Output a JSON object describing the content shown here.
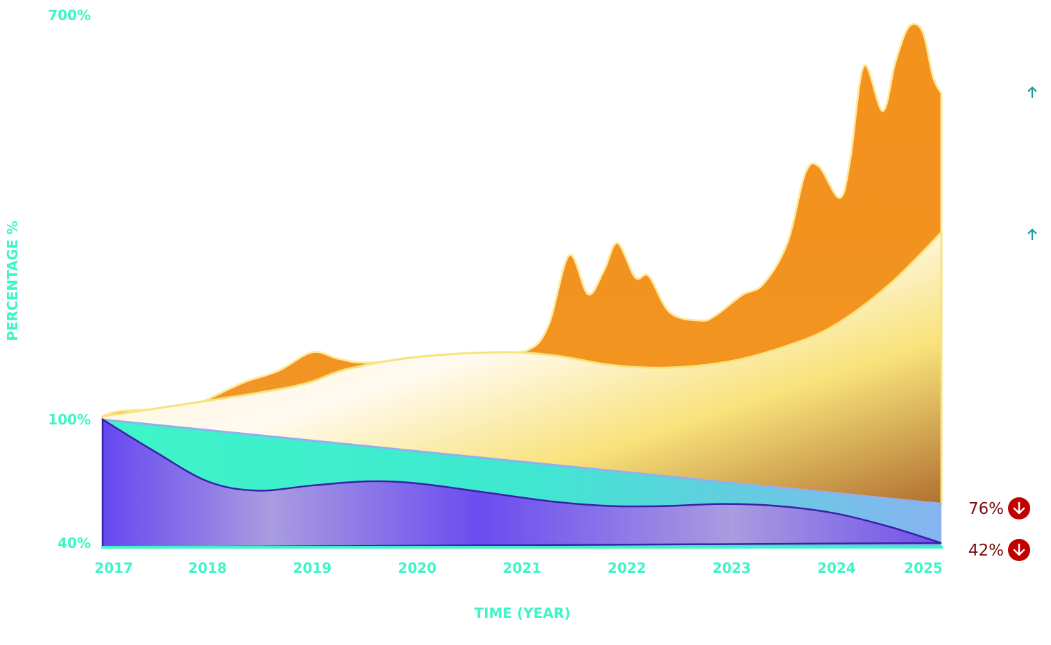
{
  "chart_data": {
    "type": "area",
    "xlabel": "TIME (YEAR)",
    "ylabel": "PERCENTAGE %",
    "x_ticks": [
      "2017",
      "2018",
      "2019",
      "2020",
      "2021",
      "2022",
      "2023",
      "2024",
      "2025"
    ],
    "y_ticks": [
      "40%",
      "100%",
      "700%"
    ],
    "y_tick_values": [
      40,
      100,
      700
    ],
    "xlim": [
      2017,
      2025
    ],
    "ylim": [
      40,
      700
    ],
    "grid": false,
    "series": [
      {
        "color": "#f39320",
        "points": [
          [
            2017,
            105
          ],
          [
            2017.18,
            113
          ],
          [
            2017.74,
            117
          ],
          [
            2017.94,
            126
          ],
          [
            2018.34,
            155
          ],
          [
            2018.67,
            172
          ],
          [
            2019.0,
            200
          ],
          [
            2019.26,
            190
          ],
          [
            2019.59,
            185
          ],
          [
            2020.65,
            198
          ],
          [
            2021.05,
            203
          ],
          [
            2021.25,
            239
          ],
          [
            2021.45,
            344
          ],
          [
            2021.63,
            286
          ],
          [
            2021.78,
            321
          ],
          [
            2021.91,
            362
          ],
          [
            2022.08,
            311
          ],
          [
            2022.21,
            313
          ],
          [
            2022.41,
            259
          ],
          [
            2022.7,
            247
          ],
          [
            2022.84,
            254
          ],
          [
            2023.1,
            285
          ],
          [
            2023.3,
            301
          ],
          [
            2023.53,
            362
          ],
          [
            2023.7,
            465
          ],
          [
            2023.83,
            476
          ],
          [
            2024.03,
            429
          ],
          [
            2024.13,
            486
          ],
          [
            2024.26,
            625
          ],
          [
            2024.44,
            558
          ],
          [
            2024.56,
            630
          ],
          [
            2024.69,
            683
          ],
          [
            2024.82,
            676
          ],
          [
            2024.92,
            609
          ],
          [
            2025.0,
            584
          ]
        ]
      },
      {
        "color": "#f8e27a",
        "points": [
          [
            2017,
            105
          ],
          [
            2018.0,
            128
          ],
          [
            2018.87,
            151
          ],
          [
            2019.33,
            175
          ],
          [
            2020.0,
            193
          ],
          [
            2020.79,
            200
          ],
          [
            2021.32,
            195
          ],
          [
            2021.85,
            181
          ],
          [
            2022.38,
            177
          ],
          [
            2022.97,
            186
          ],
          [
            2023.5,
            208
          ],
          [
            2023.97,
            239
          ],
          [
            2024.5,
            300
          ],
          [
            2025,
            378
          ]
        ]
      },
      {
        "color": "#3ef5c8",
        "points": [
          [
            2017,
            100
          ],
          [
            2025,
            59
          ]
        ]
      },
      {
        "color": "#6a4cf0",
        "points": [
          [
            2017,
            100
          ],
          [
            2017.48,
            85
          ],
          [
            2018.0,
            70
          ],
          [
            2018.47,
            65.5
          ],
          [
            2019.0,
            68
          ],
          [
            2019.53,
            70
          ],
          [
            2020.0,
            69
          ],
          [
            2020.65,
            64.6
          ],
          [
            2021.32,
            60
          ],
          [
            2021.85,
            58
          ],
          [
            2022.38,
            58
          ],
          [
            2022.91,
            59
          ],
          [
            2023.44,
            58
          ],
          [
            2023.97,
            54.6
          ],
          [
            2024.5,
            48
          ],
          [
            2025,
            40
          ]
        ]
      }
    ],
    "end_labels": [
      {
        "text": "76%",
        "direction": "down",
        "color": "#c00000"
      },
      {
        "text": "42%",
        "direction": "down",
        "color": "#c00000"
      }
    ],
    "up_markers": [
      {
        "direction": "up",
        "color": "#1a9a9a"
      },
      {
        "direction": "up",
        "color": "#1a9a9a"
      }
    ]
  }
}
